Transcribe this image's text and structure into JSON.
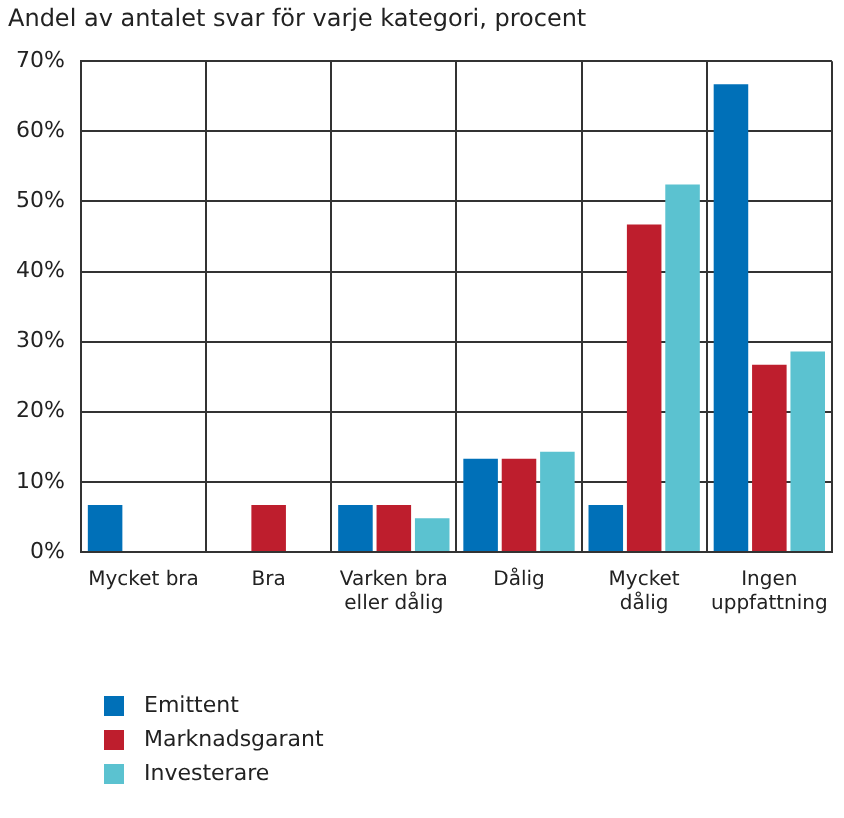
{
  "chart_data": {
    "type": "bar",
    "title": "Andel av antalet svar för varje kategori, procent",
    "categories": [
      "Mycket bra",
      "Bra",
      "Varken bra eller dålig",
      "Dålig",
      "Mycket dålig",
      "Ingen uppfattning"
    ],
    "series": [
      {
        "name": "Emittent",
        "color": "#0070b8",
        "values": [
          6.7,
          0,
          6.7,
          13.3,
          6.7,
          66.7
        ]
      },
      {
        "name": "Marknadsgarant",
        "color": "#be1e2d",
        "values": [
          0,
          6.7,
          6.7,
          13.3,
          46.7,
          26.7
        ]
      },
      {
        "name": "Investerare",
        "color": "#5bc2d0",
        "values": [
          0,
          0,
          4.8,
          14.3,
          52.4,
          28.6
        ]
      }
    ],
    "ylim": [
      0,
      70
    ],
    "yticks": [
      {
        "value": 0,
        "label": "0%"
      },
      {
        "value": 10,
        "label": "10%"
      },
      {
        "value": 20,
        "label": "20%"
      },
      {
        "value": 30,
        "label": "30%"
      },
      {
        "value": 40,
        "label": "40%"
      },
      {
        "value": 50,
        "label": "50%"
      },
      {
        "value": 60,
        "label": "60%"
      },
      {
        "value": 70,
        "label": "70%"
      }
    ],
    "grid": true,
    "legend": "bottom left"
  }
}
